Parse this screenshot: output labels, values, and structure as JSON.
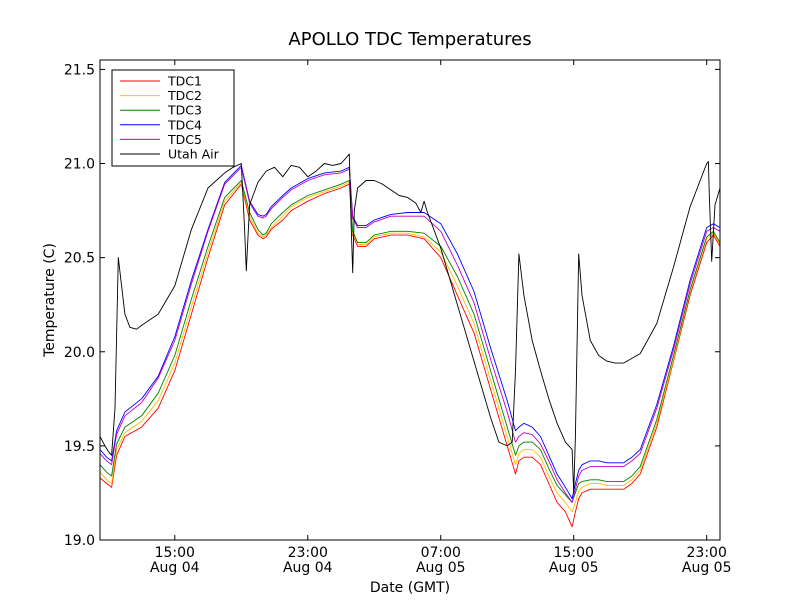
{
  "chart_data": {
    "type": "line",
    "title": "APOLLO TDC Temperatures",
    "xlabel": "Date (GMT)",
    "ylabel": "Temperature (C)",
    "x_units": "hours since Aug 04 00:00 GMT",
    "xlim": [
      10.5,
      47.8
    ],
    "ylim": [
      19.0,
      21.55
    ],
    "grid": false,
    "legend_position": "upper-left",
    "x_ticks": [
      {
        "value": 15,
        "time": "15:00",
        "date": "Aug 04"
      },
      {
        "value": 23,
        "time": "23:00",
        "date": "Aug 04"
      },
      {
        "value": 31,
        "time": "07:00",
        "date": "Aug 05"
      },
      {
        "value": 39,
        "time": "15:00",
        "date": "Aug 05"
      },
      {
        "value": 47,
        "time": "23:00",
        "date": "Aug 05"
      }
    ],
    "y_ticks": [
      {
        "value": 19.0,
        "label": "19.0"
      },
      {
        "value": 19.5,
        "label": "19.5"
      },
      {
        "value": 20.0,
        "label": "20.0"
      },
      {
        "value": 20.5,
        "label": "20.5"
      },
      {
        "value": 21.0,
        "label": "21.0"
      },
      {
        "value": 21.5,
        "label": "21.5"
      }
    ],
    "series": [
      {
        "name": "TDC1",
        "color": "#ff0000",
        "x": [
          10.5,
          10.9,
          11.2,
          11.5,
          12.0,
          13.0,
          14.0,
          15.0,
          16.0,
          17.0,
          18.0,
          19.0,
          19.5,
          20.0,
          20.3,
          20.5,
          20.8,
          21.5,
          22.0,
          23.0,
          24.0,
          25.0,
          25.5,
          25.7,
          26.0,
          26.5,
          27.0,
          28.0,
          29.0,
          30.0,
          31.0,
          32.0,
          33.0,
          34.0,
          35.0,
          35.5,
          35.7,
          36.0,
          36.5,
          37.0,
          37.5,
          38.0,
          38.5,
          38.9,
          39.1,
          39.3,
          39.5,
          40.0,
          40.5,
          41.0,
          41.5,
          42.0,
          42.5,
          43.0,
          44.0,
          45.0,
          46.0,
          47.0,
          47.4,
          47.8
        ],
        "y": [
          19.33,
          19.3,
          19.28,
          19.45,
          19.55,
          19.6,
          19.7,
          19.9,
          20.2,
          20.5,
          20.78,
          20.89,
          20.7,
          20.62,
          20.6,
          20.61,
          20.65,
          20.7,
          20.75,
          20.8,
          20.84,
          20.87,
          20.89,
          20.62,
          20.56,
          20.56,
          20.6,
          20.62,
          20.62,
          20.6,
          20.5,
          20.3,
          20.1,
          19.8,
          19.5,
          19.35,
          19.42,
          19.44,
          19.44,
          19.4,
          19.3,
          19.2,
          19.15,
          19.07,
          19.15,
          19.22,
          19.25,
          19.27,
          19.27,
          19.27,
          19.27,
          19.27,
          19.3,
          19.35,
          19.6,
          19.95,
          20.3,
          20.58,
          20.62,
          20.56
        ]
      },
      {
        "name": "TDC2",
        "color": "#ffbf00",
        "x": [
          10.5,
          10.9,
          11.2,
          11.5,
          12.0,
          13.0,
          14.0,
          15.0,
          16.0,
          17.0,
          18.0,
          19.0,
          19.5,
          20.0,
          20.3,
          20.5,
          20.8,
          21.5,
          22.0,
          23.0,
          24.0,
          25.0,
          25.5,
          25.7,
          26.0,
          26.5,
          27.0,
          28.0,
          29.0,
          30.0,
          31.0,
          32.0,
          33.0,
          34.0,
          35.0,
          35.5,
          35.7,
          36.0,
          36.5,
          37.0,
          37.5,
          38.0,
          38.5,
          38.9,
          39.1,
          39.3,
          39.5,
          40.0,
          40.5,
          41.0,
          41.5,
          42.0,
          42.5,
          43.0,
          44.0,
          45.0,
          46.0,
          47.0,
          47.4,
          47.8
        ],
        "y": [
          19.36,
          19.32,
          19.3,
          19.48,
          19.57,
          19.63,
          19.74,
          19.94,
          20.24,
          20.53,
          20.8,
          20.9,
          20.72,
          20.63,
          20.61,
          20.62,
          20.66,
          20.72,
          20.77,
          20.82,
          20.85,
          20.88,
          20.9,
          20.63,
          20.57,
          20.57,
          20.61,
          20.63,
          20.63,
          20.61,
          20.53,
          20.35,
          20.15,
          19.85,
          19.55,
          19.4,
          19.46,
          19.48,
          19.48,
          19.44,
          19.34,
          19.25,
          19.2,
          19.15,
          19.2,
          19.26,
          19.28,
          19.3,
          19.3,
          19.29,
          19.29,
          19.29,
          19.32,
          19.37,
          19.62,
          19.96,
          20.32,
          20.6,
          20.63,
          20.57
        ]
      },
      {
        "name": "TDC3",
        "color": "#008000",
        "x": [
          10.5,
          10.9,
          11.2,
          11.5,
          12.0,
          13.0,
          14.0,
          15.0,
          16.0,
          17.0,
          18.0,
          19.0,
          19.5,
          20.0,
          20.3,
          20.5,
          20.8,
          21.5,
          22.0,
          23.0,
          24.0,
          25.0,
          25.5,
          25.7,
          26.0,
          26.5,
          27.0,
          28.0,
          29.0,
          30.0,
          31.0,
          32.0,
          33.0,
          34.0,
          35.0,
          35.5,
          35.7,
          36.0,
          36.5,
          37.0,
          37.5,
          38.0,
          38.5,
          38.9,
          39.1,
          39.3,
          39.5,
          40.0,
          40.5,
          41.0,
          41.5,
          42.0,
          42.5,
          43.0,
          44.0,
          45.0,
          46.0,
          47.0,
          47.4,
          47.8
        ],
        "y": [
          19.4,
          19.36,
          19.34,
          19.51,
          19.6,
          19.66,
          19.78,
          19.98,
          20.28,
          20.56,
          20.82,
          20.91,
          20.74,
          20.65,
          20.62,
          20.63,
          20.68,
          20.74,
          20.78,
          20.83,
          20.86,
          20.89,
          20.91,
          20.64,
          20.58,
          20.58,
          20.62,
          20.64,
          20.64,
          20.63,
          20.56,
          20.4,
          20.2,
          19.9,
          19.6,
          19.45,
          19.5,
          19.52,
          19.52,
          19.48,
          19.38,
          19.29,
          19.24,
          19.2,
          19.25,
          19.3,
          19.31,
          19.32,
          19.32,
          19.31,
          19.31,
          19.31,
          19.34,
          19.39,
          19.64,
          19.98,
          20.33,
          20.61,
          20.64,
          20.58
        ]
      },
      {
        "name": "TDC4",
        "color": "#0000ff",
        "x": [
          10.5,
          10.9,
          11.2,
          11.5,
          12.0,
          13.0,
          14.0,
          15.0,
          16.0,
          17.0,
          18.0,
          19.0,
          19.5,
          20.0,
          20.3,
          20.5,
          20.8,
          21.5,
          22.0,
          23.0,
          24.0,
          25.0,
          25.5,
          25.7,
          26.0,
          26.5,
          27.0,
          28.0,
          29.0,
          30.0,
          31.0,
          32.0,
          33.0,
          34.0,
          35.0,
          35.5,
          35.7,
          36.0,
          36.5,
          37.0,
          37.5,
          38.0,
          38.5,
          38.9,
          39.1,
          39.3,
          39.5,
          40.0,
          40.5,
          41.0,
          41.5,
          42.0,
          42.5,
          43.0,
          44.0,
          45.0,
          46.0,
          47.0,
          47.4,
          47.8
        ],
        "y": [
          19.48,
          19.44,
          19.42,
          19.58,
          19.68,
          19.75,
          19.87,
          20.08,
          20.38,
          20.65,
          20.9,
          20.99,
          20.8,
          20.73,
          20.72,
          20.73,
          20.77,
          20.83,
          20.87,
          20.92,
          20.95,
          20.96,
          20.98,
          20.72,
          20.67,
          20.67,
          20.7,
          20.73,
          20.74,
          20.74,
          20.68,
          20.52,
          20.32,
          20.02,
          19.74,
          19.58,
          19.6,
          19.62,
          19.6,
          19.55,
          19.45,
          19.35,
          19.28,
          19.22,
          19.3,
          19.37,
          19.4,
          19.42,
          19.42,
          19.41,
          19.41,
          19.41,
          19.44,
          19.48,
          19.72,
          20.03,
          20.38,
          20.66,
          20.68,
          20.66
        ]
      },
      {
        "name": "TDC5",
        "color": "#bf00bf",
        "x": [
          10.5,
          10.9,
          11.2,
          11.5,
          12.0,
          13.0,
          14.0,
          15.0,
          16.0,
          17.0,
          18.0,
          19.0,
          19.5,
          20.0,
          20.3,
          20.5,
          20.8,
          21.5,
          22.0,
          23.0,
          24.0,
          25.0,
          25.5,
          25.7,
          26.0,
          26.5,
          27.0,
          28.0,
          29.0,
          30.0,
          31.0,
          32.0,
          33.0,
          34.0,
          35.0,
          35.5,
          35.7,
          36.0,
          36.5,
          37.0,
          37.5,
          38.0,
          38.5,
          38.9,
          39.1,
          39.3,
          39.5,
          40.0,
          40.5,
          41.0,
          41.5,
          42.0,
          42.5,
          43.0,
          44.0,
          45.0,
          46.0,
          47.0,
          47.4,
          47.8
        ],
        "y": [
          19.46,
          19.42,
          19.4,
          19.56,
          19.66,
          19.73,
          19.86,
          20.06,
          20.36,
          20.64,
          20.89,
          20.98,
          20.79,
          20.72,
          20.71,
          20.72,
          20.76,
          20.82,
          20.86,
          20.91,
          20.94,
          20.95,
          20.97,
          20.71,
          20.66,
          20.66,
          20.69,
          20.72,
          20.72,
          20.72,
          20.64,
          20.46,
          20.26,
          19.96,
          19.68,
          19.52,
          19.55,
          19.57,
          19.56,
          19.51,
          19.42,
          19.32,
          19.25,
          19.2,
          19.27,
          19.34,
          19.37,
          19.39,
          19.39,
          19.39,
          19.39,
          19.39,
          19.42,
          19.46,
          19.7,
          20.01,
          20.36,
          20.64,
          20.66,
          20.64
        ]
      },
      {
        "name": "Utah Air",
        "color": "#000000",
        "x": [
          10.5,
          10.8,
          11.0,
          11.2,
          11.4,
          11.6,
          11.8,
          12.0,
          12.3,
          12.7,
          13.0,
          14.0,
          15.0,
          16.0,
          17.0,
          18.0,
          18.5,
          19.0,
          19.2,
          19.3,
          19.5,
          20.0,
          20.5,
          21.0,
          21.5,
          22.0,
          22.5,
          23.0,
          23.5,
          24.0,
          24.5,
          25.0,
          25.3,
          25.5,
          25.6,
          25.7,
          25.8,
          26.0,
          26.5,
          27.0,
          27.5,
          28.0,
          28.5,
          29.0,
          29.5,
          29.8,
          30.0,
          30.2,
          31.0,
          32.0,
          33.0,
          34.0,
          34.5,
          35.0,
          35.3,
          35.5,
          35.7,
          36.0,
          36.5,
          37.0,
          37.5,
          38.0,
          38.5,
          38.9,
          39.0,
          39.1,
          39.3,
          39.5,
          40.0,
          40.5,
          41.0,
          41.5,
          42.0,
          43.0,
          44.0,
          45.0,
          46.0,
          47.0,
          47.1,
          47.15,
          47.3,
          47.5,
          47.8
        ],
        "y": [
          19.55,
          19.5,
          19.47,
          19.45,
          19.7,
          20.5,
          20.35,
          20.2,
          20.13,
          20.12,
          20.14,
          20.2,
          20.35,
          20.65,
          20.87,
          20.95,
          20.98,
          21.0,
          20.65,
          20.43,
          20.78,
          20.9,
          20.96,
          20.98,
          20.93,
          20.99,
          20.98,
          20.93,
          20.96,
          21.0,
          20.99,
          21.0,
          21.03,
          21.05,
          20.7,
          20.42,
          20.75,
          20.87,
          20.91,
          20.91,
          20.89,
          20.86,
          20.83,
          20.82,
          20.79,
          20.74,
          20.8,
          20.74,
          20.55,
          20.25,
          19.95,
          19.65,
          19.52,
          19.5,
          19.52,
          19.9,
          20.52,
          20.3,
          20.06,
          19.9,
          19.75,
          19.62,
          19.52,
          19.48,
          19.25,
          19.55,
          20.52,
          20.3,
          20.06,
          19.98,
          19.95,
          19.94,
          19.94,
          19.99,
          20.15,
          20.45,
          20.77,
          21.0,
          21.01,
          20.85,
          20.48,
          20.78,
          20.87
        ]
      }
    ]
  }
}
